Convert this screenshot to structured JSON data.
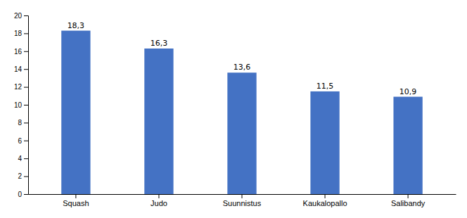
{
  "chart_data": {
    "type": "bar",
    "categories": [
      "Squash",
      "Judo",
      "Suunnistus",
      "Kaukalopallo",
      "Salibandy"
    ],
    "values": [
      18.3,
      16.3,
      13.6,
      11.5,
      10.9
    ],
    "value_labels": [
      "18,3",
      "16,3",
      "13,6",
      "11,5",
      "10,9"
    ],
    "color": "#4472C4",
    "ylim": [
      0,
      20
    ],
    "yticks": [
      0,
      2,
      4,
      6,
      8,
      10,
      12,
      14,
      16,
      18,
      20
    ],
    "grid": false,
    "data_labels": true
  }
}
